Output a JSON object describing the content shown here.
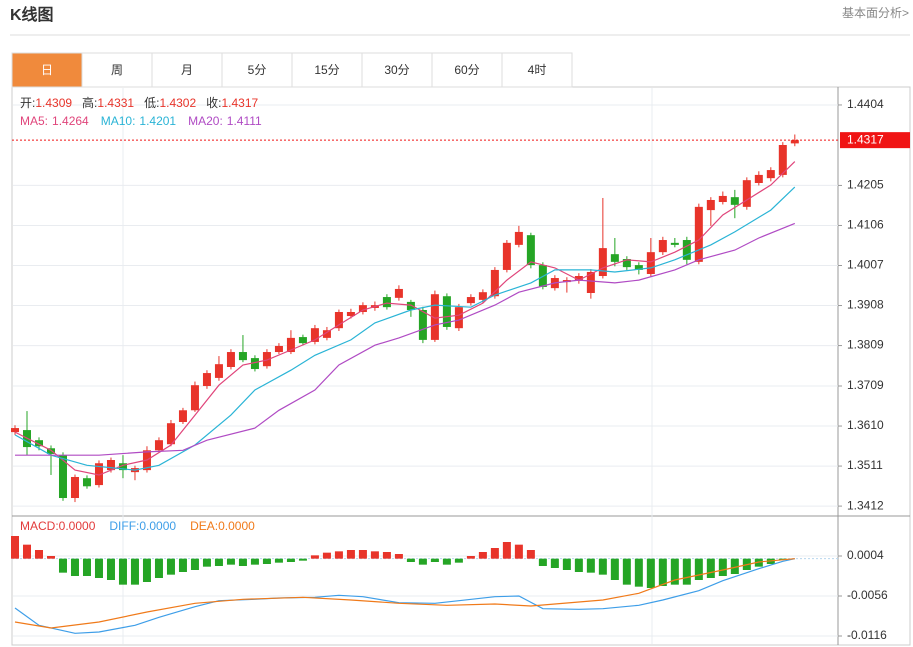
{
  "header": {
    "title": "K线图",
    "link": "基本面分析>"
  },
  "tabs": [
    "日",
    "周",
    "月",
    "5分",
    "15分",
    "30分",
    "60分",
    "4时"
  ],
  "active_tab": 0,
  "chart_data": [
    {
      "type": "candlestick",
      "up_color": "#e8342a",
      "down_color": "#25a525",
      "x": [
        1,
        2,
        3,
        4,
        5,
        6,
        7,
        8,
        9,
        10,
        11,
        12,
        13,
        14,
        15,
        16,
        17,
        18,
        19,
        20,
        21,
        22,
        23,
        24,
        25,
        26,
        27,
        28,
        29,
        30,
        31,
        32,
        33,
        34,
        35,
        36,
        37,
        38,
        39,
        40,
        41,
        42,
        43,
        44,
        45,
        46,
        47,
        48,
        49,
        50,
        51,
        52,
        53,
        54,
        55,
        56,
        57,
        58,
        59,
        60,
        61,
        62,
        63,
        64,
        65,
        66
      ],
      "open": [
        1.3595,
        1.36,
        1.3575,
        1.3555,
        1.3538,
        1.3432,
        1.3481,
        1.3464,
        1.3501,
        1.3518,
        1.3496,
        1.3501,
        1.355,
        1.3565,
        1.362,
        1.3649,
        1.3709,
        1.3729,
        1.3756,
        1.3793,
        1.3778,
        1.3758,
        1.3793,
        1.3793,
        1.383,
        1.3818,
        1.3828,
        1.3852,
        1.3882,
        1.3892,
        1.3902,
        1.3929,
        1.3927,
        1.3917,
        1.3897,
        1.3823,
        1.3931,
        1.3852,
        1.3914,
        1.3922,
        1.3931,
        1.3996,
        1.4058,
        1.4082,
        1.4008,
        1.3951,
        1.3966,
        1.3969,
        1.3939,
        1.3981,
        1.4035,
        1.4023,
        1.4008,
        1.3986,
        1.404,
        1.4063,
        1.407,
        1.4016,
        1.4144,
        1.4164,
        1.4176,
        1.4152,
        1.4211,
        1.4223,
        1.4231,
        1.4309
      ],
      "high": [
        1.3612,
        1.3647,
        1.3582,
        1.3562,
        1.3545,
        1.349,
        1.3488,
        1.3525,
        1.3532,
        1.3538,
        1.3512,
        1.356,
        1.3582,
        1.3625,
        1.3655,
        1.372,
        1.3748,
        1.3783,
        1.38,
        1.3835,
        1.3785,
        1.38,
        1.3815,
        1.3847,
        1.3836,
        1.386,
        1.3855,
        1.3898,
        1.39,
        1.3916,
        1.3918,
        1.3936,
        1.3958,
        1.3922,
        1.3905,
        1.3945,
        1.3938,
        1.3912,
        1.3936,
        1.3948,
        1.4003,
        1.407,
        1.4105,
        1.4088,
        1.4015,
        1.3983,
        1.3978,
        1.3988,
        1.3998,
        1.4174,
        1.4075,
        1.403,
        1.4015,
        1.4075,
        1.4078,
        1.4075,
        1.4078,
        1.416,
        1.4176,
        1.419,
        1.4194,
        1.4225,
        1.424,
        1.425,
        1.4312,
        1.4331
      ],
      "low": [
        1.3588,
        1.3538,
        1.355,
        1.3489,
        1.3425,
        1.3422,
        1.3455,
        1.3458,
        1.3495,
        1.3481,
        1.3476,
        1.3495,
        1.3545,
        1.356,
        1.3615,
        1.3645,
        1.3702,
        1.3722,
        1.375,
        1.3768,
        1.3745,
        1.3752,
        1.3788,
        1.3788,
        1.381,
        1.3812,
        1.3822,
        1.3845,
        1.3876,
        1.3886,
        1.3895,
        1.3898,
        1.392,
        1.388,
        1.3815,
        1.3818,
        1.3848,
        1.3845,
        1.3908,
        1.3915,
        1.3925,
        1.399,
        1.4052,
        1.4,
        1.3948,
        1.3945,
        1.394,
        1.3962,
        1.3925,
        1.3975,
        1.4005,
        1.3996,
        1.3985,
        1.398,
        1.4033,
        1.4052,
        1.401,
        1.401,
        1.4105,
        1.4158,
        1.4124,
        1.4145,
        1.4205,
        1.4215,
        1.4225,
        1.4302
      ],
      "close": [
        1.3605,
        1.3558,
        1.356,
        1.3541,
        1.3432,
        1.3484,
        1.3461,
        1.3518,
        1.3526,
        1.3501,
        1.3506,
        1.355,
        1.3575,
        1.3617,
        1.3649,
        1.3711,
        1.3741,
        1.3763,
        1.3793,
        1.3773,
        1.3751,
        1.3793,
        1.3808,
        1.3828,
        1.3815,
        1.3852,
        1.3847,
        1.3892,
        1.3892,
        1.3909,
        1.3909,
        1.3904,
        1.3949,
        1.3897,
        1.3823,
        1.3936,
        1.3855,
        1.3904,
        1.3929,
        1.3941,
        1.3996,
        1.4063,
        1.409,
        1.4008,
        1.3954,
        1.3976,
        1.3971,
        1.3981,
        1.3991,
        1.405,
        1.4016,
        1.4003,
        1.3996,
        1.404,
        1.407,
        1.4058,
        1.4021,
        1.4152,
        1.4169,
        1.4179,
        1.4157,
        1.4218,
        1.4231,
        1.4243,
        1.4305,
        1.4317
      ],
      "ohlc_labels": [
        "开:",
        "高:",
        "低:",
        "收:"
      ],
      "series": [
        {
          "name": "MA5",
          "legend": "MA5:",
          "color": "#e0457b",
          "x": [
            1,
            4,
            6,
            8,
            10,
            12,
            14,
            16,
            18,
            20,
            22,
            24,
            26,
            28,
            30,
            32,
            34,
            36,
            38,
            40,
            42,
            44,
            46,
            48,
            50,
            52,
            54,
            56,
            58,
            60,
            62,
            64,
            66
          ],
          "values": [
            1.3595,
            1.355,
            1.3501,
            1.3489,
            1.3513,
            1.3526,
            1.3563,
            1.3637,
            1.3711,
            1.3761,
            1.3773,
            1.3798,
            1.3823,
            1.386,
            1.3897,
            1.3914,
            1.3909,
            1.3877,
            1.3884,
            1.3914,
            1.3971,
            1.4016,
            1.4001,
            1.3971,
            1.4001,
            1.4021,
            1.4016,
            1.404,
            1.407,
            1.4132,
            1.4169,
            1.4206,
            1.4264
          ]
        },
        {
          "name": "MA10",
          "legend": "MA10:",
          "color": "#2ab4d6",
          "x": [
            1,
            4,
            7,
            11,
            13,
            16,
            19,
            21,
            24,
            26,
            29,
            31,
            34,
            36,
            39,
            41,
            44,
            46,
            49,
            51,
            54,
            56,
            59,
            61,
            64,
            66
          ],
          "values": [
            1.3588,
            1.3538,
            1.3513,
            1.3501,
            1.3513,
            1.3563,
            1.3637,
            1.3699,
            1.3748,
            1.3785,
            1.3823,
            1.3865,
            1.3897,
            1.3909,
            1.3904,
            1.3934,
            1.3964,
            1.3996,
            1.3996,
            1.3991,
            1.4001,
            1.4021,
            1.4058,
            1.409,
            1.4144,
            1.4201
          ]
        },
        {
          "name": "MA20",
          "legend": "MA20:",
          "color": "#b04bc4",
          "x": [
            1,
            5,
            8,
            12,
            15,
            17,
            21,
            23,
            26,
            28,
            31,
            33,
            36,
            38,
            41,
            43,
            46,
            48,
            51,
            53,
            56,
            58,
            61,
            63,
            66
          ],
          "values": [
            1.3538,
            1.3538,
            1.3538,
            1.3546,
            1.355,
            1.3575,
            1.3605,
            1.3649,
            1.3699,
            1.3761,
            1.381,
            1.3828,
            1.386,
            1.3872,
            1.3909,
            1.3941,
            1.3964,
            1.3971,
            1.3964,
            1.3971,
            1.3996,
            1.4021,
            1.4045,
            1.4075,
            1.4111
          ]
        }
      ],
      "xlim": [
        0.75,
        69.6
      ],
      "ylim": [
        1.339,
        1.4441
      ],
      "yticks": [
        1.4404,
        1.4205,
        1.4106,
        1.4007,
        1.3908,
        1.3809,
        1.3709,
        {
          "value": 1.361,
          "label": "1.3610"
        },
        1.3511,
        1.3412
      ],
      "grid": true,
      "current_price_color": "#f01414"
    },
    {
      "type": "macd",
      "series": [
        {
          "name": "MACD",
          "legend": "MACD:",
          "kind": "bar",
          "up_color": "#e8342a",
          "down_color": "#25a525",
          "color": "#e23b3b",
          "x": [
            1,
            2,
            3,
            4,
            5,
            6,
            7,
            8,
            9,
            10,
            11,
            12,
            13,
            14,
            15,
            16,
            17,
            18,
            19,
            20,
            21,
            22,
            23,
            24,
            25,
            26,
            27,
            28,
            29,
            30,
            31,
            32,
            33,
            34,
            35,
            36,
            37,
            38,
            39,
            40,
            41,
            42,
            43,
            44,
            45,
            46,
            47,
            48,
            49,
            50,
            51,
            52,
            53,
            54,
            55,
            56,
            57,
            58,
            59,
            60,
            61,
            62,
            63,
            64,
            65,
            66
          ],
          "values": [
            0.0034,
            0.0021,
            0.0013,
            0.0004,
            -0.0021,
            -0.0026,
            -0.0026,
            -0.0029,
            -0.0032,
            -0.0039,
            -0.0039,
            -0.0035,
            -0.0029,
            -0.0024,
            -0.002,
            -0.0017,
            -0.0012,
            -0.0011,
            -0.0009,
            -0.0011,
            -0.0009,
            -0.0008,
            -0.0006,
            -0.0005,
            -0.0003,
            0.0005,
            0.0009,
            0.0011,
            0.0013,
            0.0013,
            0.0011,
            0.001,
            0.0007,
            -0.0005,
            -0.0009,
            -0.0005,
            -0.0009,
            -0.0006,
            0.0004,
            0.001,
            0.0016,
            0.0025,
            0.0021,
            0.0013,
            -0.0011,
            -0.0014,
            -0.0017,
            -0.002,
            -0.0021,
            -0.0024,
            -0.0032,
            -0.0039,
            -0.0042,
            -0.0044,
            -0.0041,
            -0.0039,
            -0.0039,
            -0.0032,
            -0.0029,
            -0.0026,
            -0.0023,
            -0.0017,
            -0.0012,
            -0.0008,
            -0.0002,
            0
          ],
          "value_label": "0.0000"
        },
        {
          "name": "DIFF",
          "legend": "DIFF:",
          "kind": "line",
          "color": "#3e9ee8",
          "x": [
            1,
            3,
            6,
            8,
            11,
            13,
            16,
            18,
            21,
            23,
            26,
            28,
            30,
            33,
            36,
            38,
            41,
            43,
            45,
            48,
            50,
            53,
            55,
            58,
            60,
            63,
            65,
            66
          ],
          "values": [
            -0.0074,
            -0.01,
            -0.0112,
            -0.011,
            -0.01,
            -0.0088,
            -0.0072,
            -0.0063,
            -0.0061,
            -0.0059,
            -0.0058,
            -0.0055,
            -0.0057,
            -0.0066,
            -0.0067,
            -0.0063,
            -0.0057,
            -0.0056,
            -0.0075,
            -0.0076,
            -0.0075,
            -0.007,
            -0.0062,
            -0.0048,
            -0.0033,
            -0.0015,
            -0.0004,
            0
          ],
          "value_label": "0.0000"
        },
        {
          "name": "DEA",
          "legend": "DEA:",
          "kind": "line",
          "color": "#f07a1a",
          "x": [
            1,
            4,
            8,
            12,
            16,
            20,
            25,
            29,
            33,
            37,
            41,
            44,
            46,
            50,
            53,
            56,
            60,
            63,
            66
          ],
          "values": [
            -0.0095,
            -0.0104,
            -0.0095,
            -0.008,
            -0.0067,
            -0.0061,
            -0.0058,
            -0.0062,
            -0.0067,
            -0.007,
            -0.0068,
            -0.0071,
            -0.0068,
            -0.0062,
            -0.0052,
            -0.0032,
            -0.0017,
            -0.0005,
            0
          ],
          "value_label": "0.0000"
        }
      ],
      "xlim": [
        0.75,
        69.6
      ],
      "ylim": [
        -0.01295,
        0.0061
      ],
      "yticks": [
        0.0004,
        -0.0056,
        -0.0116
      ],
      "grid": true
    }
  ]
}
